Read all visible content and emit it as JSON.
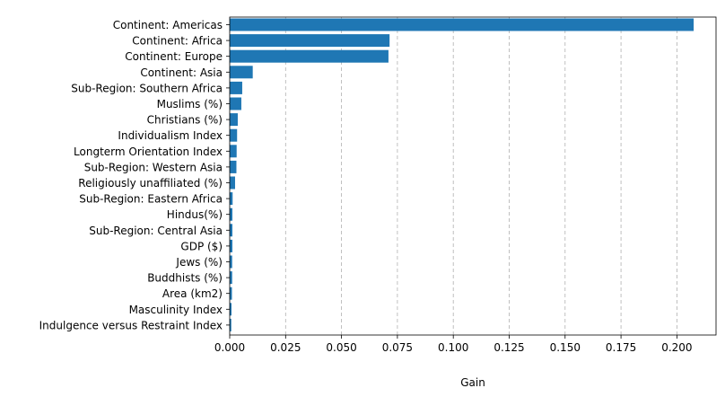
{
  "chart_data": {
    "type": "bar",
    "orientation": "horizontal",
    "categories": [
      "Continent: Americas",
      "Continent: Africa",
      "Continent: Europe",
      "Continent: Asia",
      "Sub-Region: Southern Africa",
      "Muslims (%)",
      "Christians (%)",
      "Individualism Index",
      "Longterm Orientation Index",
      "Sub-Region: Western Asia",
      "Religiously unaffiliated (%)",
      "Sub-Region: Eastern Africa",
      "Hindus(%)",
      "Sub-Region: Central Asia",
      "GDP ($)",
      "Jews (%)",
      "Buddhists (%)",
      "Area (km2)",
      "Masculinity Index",
      "Indulgence versus Restraint Index"
    ],
    "values": [
      0.2075,
      0.0715,
      0.071,
      0.0103,
      0.0056,
      0.0052,
      0.0036,
      0.0033,
      0.0031,
      0.003,
      0.0024,
      0.0013,
      0.0012,
      0.0012,
      0.0012,
      0.0011,
      0.0011,
      0.001,
      0.0008,
      0.0007
    ],
    "xlabel": "Gain",
    "ylabel": "",
    "title": "",
    "xlim": [
      0,
      0.2175
    ],
    "x_ticks": [
      0.0,
      0.025,
      0.05,
      0.075,
      0.1,
      0.125,
      0.15,
      0.175,
      0.2
    ],
    "x_tick_labels": [
      "0.000",
      "0.025",
      "0.050",
      "0.075",
      "0.100",
      "0.125",
      "0.150",
      "0.175",
      "0.200"
    ],
    "grid": "x-axis dashed",
    "bar_color": "#1f77b4"
  }
}
